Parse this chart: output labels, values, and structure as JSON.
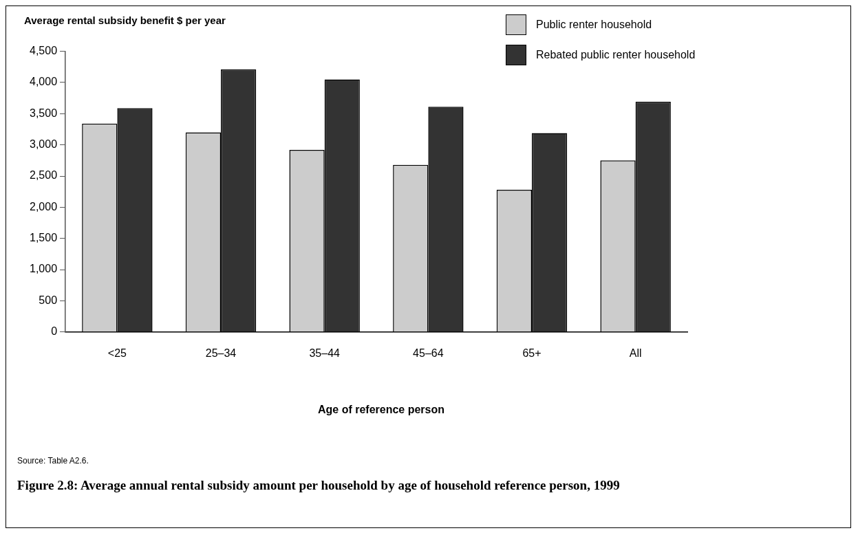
{
  "chart_data": {
    "type": "bar",
    "title": "Figure 2.8: Average annual rental subsidy amount per household by age of household reference person, 1999",
    "ylabel": "Average rental subsidy benefit $ per year",
    "xlabel": "Age of reference person",
    "annotations": [
      "Source: Table A2.6."
    ],
    "categories": [
      "<25",
      "25–34",
      "35–44",
      "45–64",
      "65+",
      "All"
    ],
    "series": [
      {
        "name": "Public renter household",
        "color": "#cccccc",
        "values": [
          3340,
          3200,
          2920,
          2680,
          2280,
          2750
        ]
      },
      {
        "name": "Rebated public renter household",
        "color": "#333333",
        "values": [
          3590,
          4210,
          4050,
          3610,
          3190,
          3690
        ]
      }
    ],
    "ylim": [
      0,
      4500
    ],
    "yticks": [
      0,
      500,
      {
        "value": 1000,
        "label": "1,000"
      },
      {
        "value": 1500,
        "label": "1,500"
      },
      {
        "value": 2000,
        "label": "2,000"
      },
      {
        "value": 2500,
        "label": "2,500"
      },
      {
        "value": 3000,
        "label": "3,000"
      },
      {
        "value": 3500,
        "label": "3,500"
      },
      {
        "value": 4000,
        "label": "4,000"
      },
      {
        "value": 4500,
        "label": "4,500"
      }
    ],
    "grid": false,
    "legend": "top right"
  }
}
